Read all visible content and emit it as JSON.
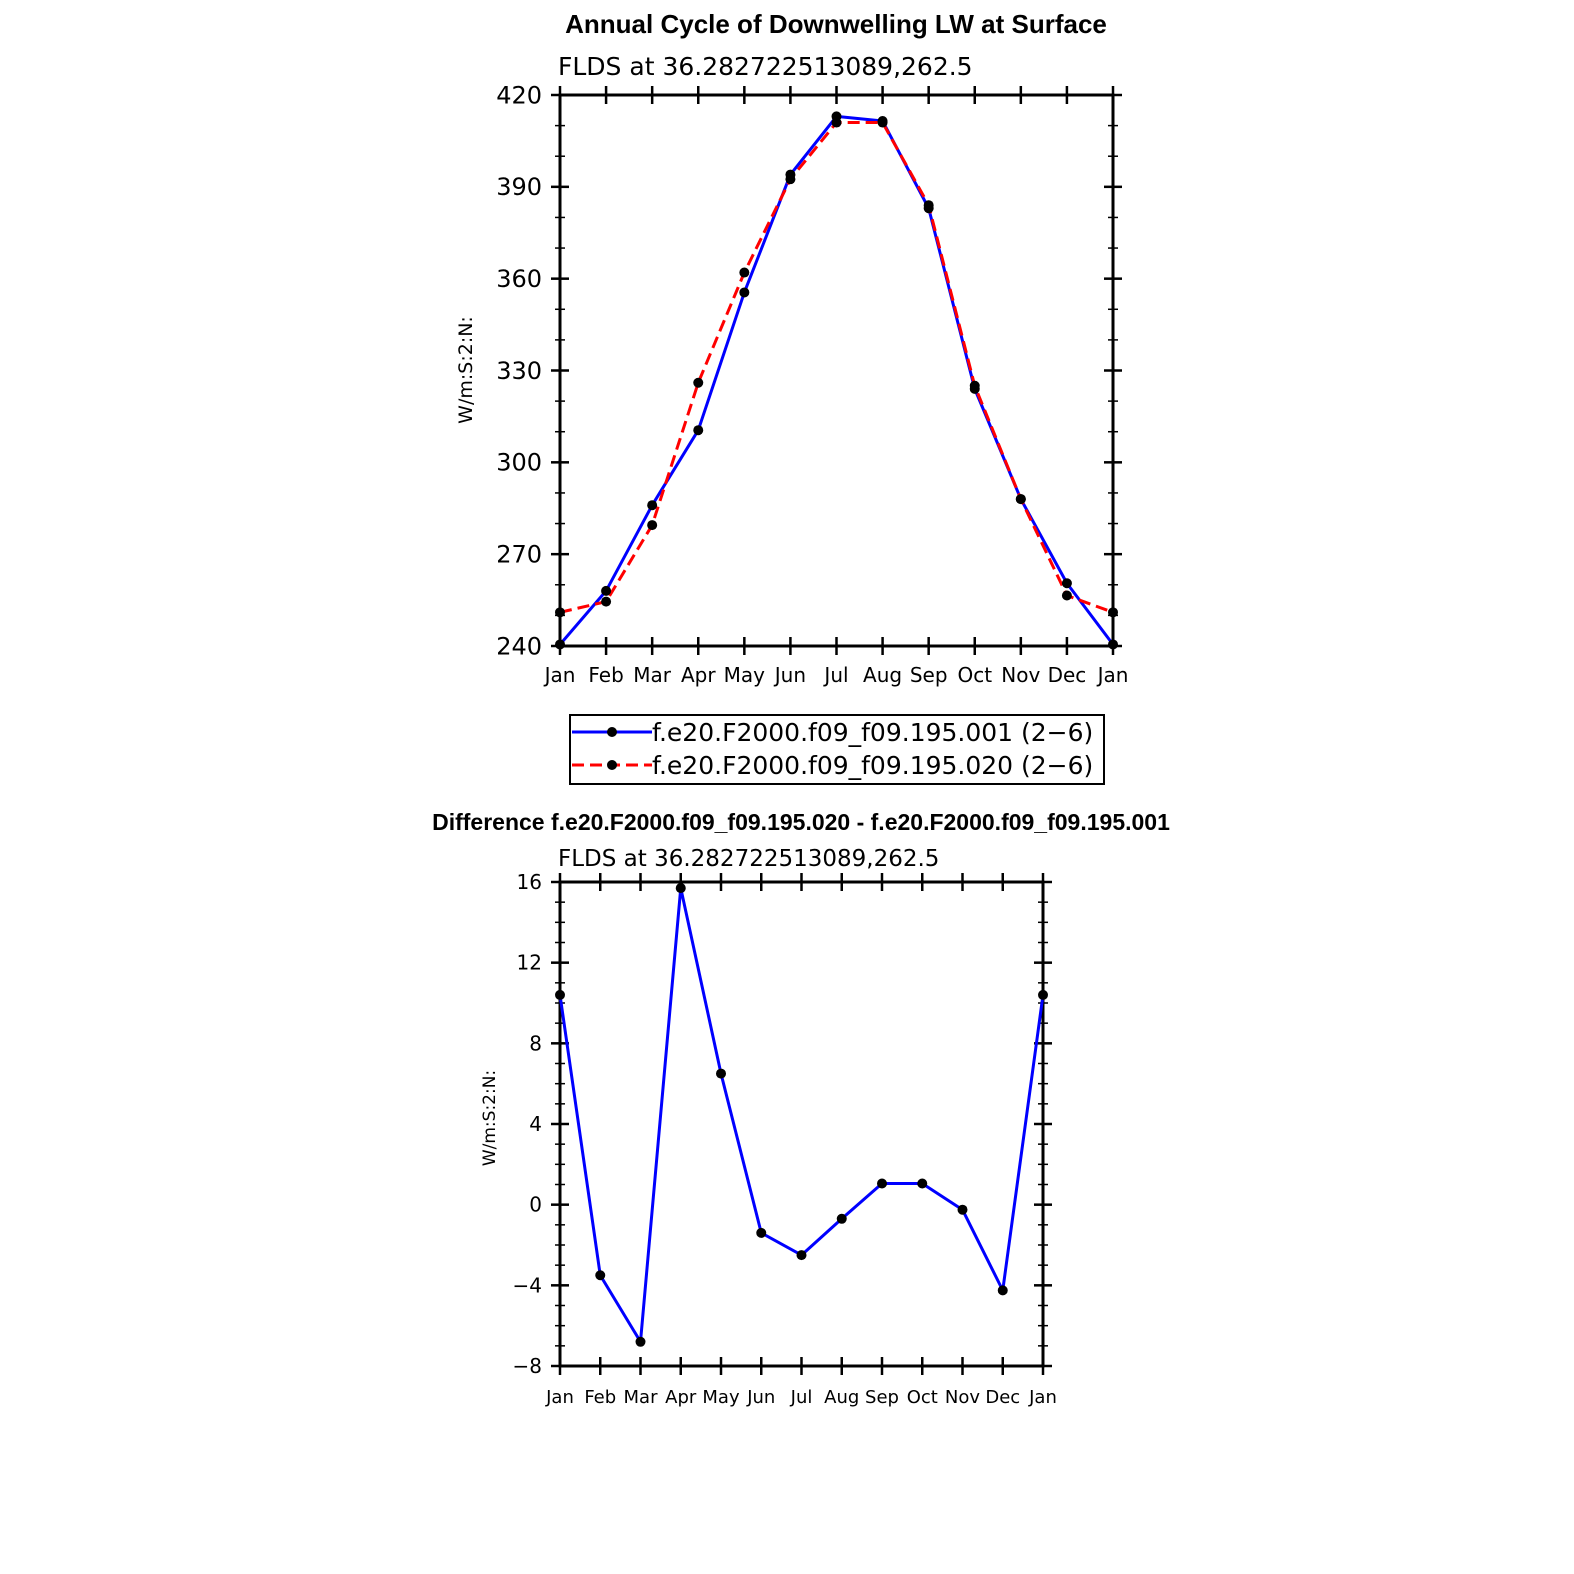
{
  "chart_data": [
    {
      "type": "line",
      "title": "Annual Cycle of Downwelling LW at Surface",
      "subtitle": "FLDS at 36.282722513089,262.5",
      "ylabel": "W/m:S:2:N:",
      "xlabel": "",
      "categories": [
        "Jan",
        "Feb",
        "Mar",
        "Apr",
        "May",
        "Jun",
        "Jul",
        "Aug",
        "Sep",
        "Oct",
        "Nov",
        "Dec",
        "Jan"
      ],
      "ylim": [
        240,
        420
      ],
      "yticks": [
        "240",
        "270",
        "300",
        "330",
        "360",
        "390",
        "420"
      ],
      "series": [
        {
          "name": "f.e20.F2000.f09_f09.195.001 (2−6)",
          "color": "#0000ff",
          "dash": "solid",
          "values": [
            240.5,
            258,
            286,
            310.5,
            355.5,
            394,
            413,
            411.5,
            383,
            324,
            288,
            260.5,
            240.5
          ]
        },
        {
          "name": "f.e20.F2000.f09_f09.195.020 (2−6)",
          "color": "#ff0000",
          "dash": "dashed",
          "values": [
            251,
            254.5,
            279.5,
            326,
            362,
            392.5,
            411,
            411,
            384,
            325,
            288,
            256.5,
            251
          ]
        }
      ],
      "legend": "below"
    },
    {
      "type": "line",
      "title": "Difference f.e20.F2000.f09_f09.195.020 - f.e20.F2000.f09_f09.195.001",
      "subtitle": "FLDS at 36.282722513089,262.5",
      "ylabel": "W/m:S:2:N:",
      "xlabel": "",
      "categories": [
        "Jan",
        "Feb",
        "Mar",
        "Apr",
        "May",
        "Jun",
        "Jul",
        "Aug",
        "Sep",
        "Oct",
        "Nov",
        "Dec",
        "Jan"
      ],
      "ylim": [
        -8,
        16
      ],
      "yticks": [
        "−8",
        "−4",
        "0",
        "4",
        "8",
        "12",
        "16"
      ],
      "series": [
        {
          "name": "difference",
          "color": "#0000ff",
          "dash": "solid",
          "values": [
            10.4,
            -3.5,
            -6.8,
            15.7,
            6.5,
            -1.4,
            -2.5,
            -0.7,
            1.05,
            1.05,
            -0.25,
            -4.25,
            10.4
          ]
        }
      ]
    }
  ]
}
